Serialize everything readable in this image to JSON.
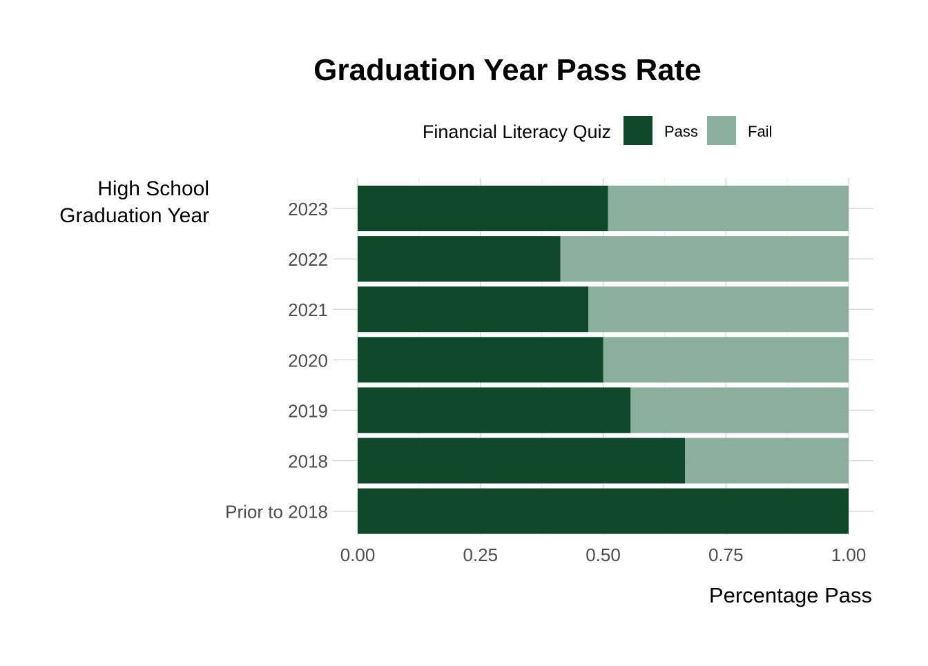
{
  "chart_data": {
    "type": "bar",
    "orientation": "horizontal",
    "stacked": true,
    "title": "Graduation Year Pass Rate",
    "xlabel": "Percentage Pass",
    "ylabel": [
      "High School",
      "Graduation Year"
    ],
    "legend": {
      "title": "Financial Literacy Quiz",
      "position": "top",
      "entries": [
        "Pass",
        "Fail"
      ]
    },
    "categories": [
      "2023",
      "2022",
      "2021",
      "2020",
      "2019",
      "2018",
      "Prior to 2018"
    ],
    "series": [
      {
        "name": "Pass",
        "color": "#0f472b",
        "values": [
          0.51,
          0.413,
          0.47,
          0.5,
          0.556,
          0.667,
          1.0
        ]
      },
      {
        "name": "Fail",
        "color": "#8aaf9c",
        "values": [
          0.49,
          0.587,
          0.53,
          0.5,
          0.444,
          0.333,
          0.0
        ]
      }
    ],
    "xlim": [
      0,
      1
    ],
    "xticks": [
      "0.00",
      "0.25",
      "0.50",
      "0.75",
      "1.00"
    ],
    "grid": true
  }
}
